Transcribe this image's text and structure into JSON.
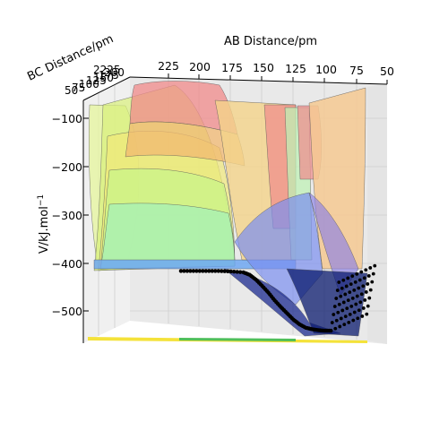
{
  "chart_data": {
    "type": "surface-3d",
    "title": "",
    "xlabel": "AB Distance/pm",
    "ylabel": "BC Distance/pm",
    "zlabel": "V/kJ.mol$^{-1}$",
    "zlabel_parts": {
      "base": "V/kJ.mol",
      "sup": "−1"
    },
    "x_ticks": [
      "225",
      "200",
      "175",
      "150",
      "125",
      "100",
      "75",
      "50"
    ],
    "y_ticks_text": "2225",
    "y_ticks_overlap": [
      "50",
      "75",
      "100",
      "125",
      "150",
      "175",
      "200"
    ],
    "z_ticks": [
      "−100",
      "−200",
      "−300",
      "−400",
      "−500"
    ],
    "z_ticks_values": [
      -100,
      -200,
      -300,
      -400,
      -500
    ],
    "zlim": [
      -570,
      -60
    ],
    "xlim": [
      50,
      240
    ],
    "ylim": [
      50,
      240
    ],
    "colormap": "jet",
    "view": "elevation ~0, azimuth looking along BC axis",
    "trajectory": {
      "description": "reaction trajectory points",
      "color": "#000000",
      "points_xz": [
        [
          215,
          -417
        ],
        [
          205,
          -417
        ],
        [
          195,
          -417
        ],
        [
          185,
          -417
        ],
        [
          175,
          -418
        ],
        [
          165,
          -420
        ],
        [
          160,
          -425
        ],
        [
          155,
          -435
        ],
        [
          150,
          -448
        ],
        [
          145,
          -462
        ],
        [
          140,
          -478
        ],
        [
          135,
          -492
        ],
        [
          130,
          -505
        ],
        [
          125,
          -518
        ],
        [
          120,
          -528
        ],
        [
          115,
          -535
        ],
        [
          110,
          -538
        ],
        [
          105,
          -540
        ],
        [
          100,
          -541
        ],
        [
          95,
          -541
        ]
      ]
    },
    "grid": true
  }
}
